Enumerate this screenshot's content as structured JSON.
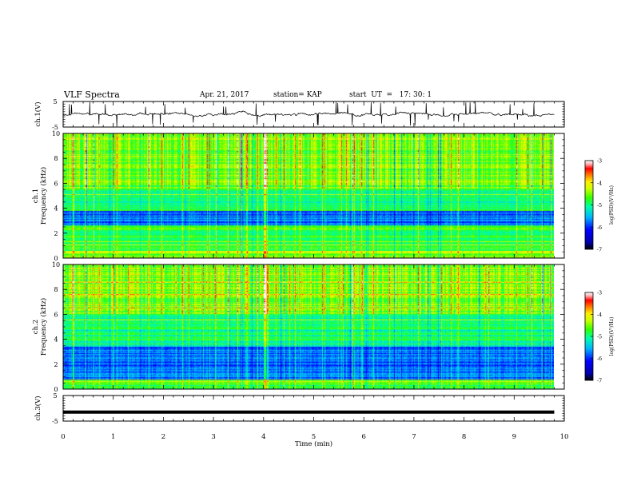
{
  "header": {
    "title": "VLF Spectra",
    "date": "Apr. 21, 2017",
    "station": "station= KAP",
    "start": "start  UT  =   17: 30: 1"
  },
  "chart_data": [
    {
      "type": "line",
      "panel": "ch1-waveform",
      "ylabel": "ch.1(V)",
      "ylim": [
        -5,
        5
      ],
      "yticks": [
        "5",
        "-5"
      ],
      "xlim": [
        0,
        10
      ],
      "x_extent": [
        0,
        9.8
      ],
      "y_typical_range": [
        -1.5,
        1.5
      ],
      "y_spike_range": [
        -5,
        5
      ]
    },
    {
      "type": "heatmap",
      "panel": "ch1-spectrogram",
      "ylabel": "ch.1\nFrequency (kHz)",
      "ylabel_lines": [
        "ch.1",
        "Frequency (kHz)"
      ],
      "ylim": [
        0,
        10
      ],
      "yticks": [
        "0",
        "2",
        "4",
        "6",
        "8",
        "10"
      ],
      "xlim": [
        0,
        10
      ],
      "x_extent": [
        0,
        9.8
      ],
      "colorbar": {
        "label": "log(PSD)(V²/Hz)",
        "range": [
          -7,
          -3
        ],
        "ticks": [
          "-3",
          "-4",
          "-5",
          "-6",
          "-7"
        ],
        "colors": [
          "#000099",
          "#0000ff",
          "#00aaff",
          "#00ffaa",
          "#33ff00",
          "#ccff00",
          "#ffee00",
          "#ff8800",
          "#ff0000",
          "#ffaaaa",
          "#ffffff"
        ]
      },
      "features": [
        {
          "band_khz": [
            0,
            0.6
          ],
          "level": "high"
        },
        {
          "band_khz": [
            0.6,
            2.6
          ],
          "level": "medium-high"
        },
        {
          "band_khz": [
            2.6,
            3.8
          ],
          "level": "low"
        },
        {
          "band_khz": [
            3.8,
            5.6
          ],
          "level": "medium"
        },
        {
          "band_khz": [
            5.6,
            10
          ],
          "level": "high with vertical impulses"
        }
      ]
    },
    {
      "type": "heatmap",
      "panel": "ch2-spectrogram",
      "ylabel": "ch.2\nFrequency (kHz)",
      "ylabel_lines": [
        "ch.2",
        "Frequency (kHz)"
      ],
      "ylim": [
        0,
        10
      ],
      "yticks": [
        "0",
        "2",
        "4",
        "6",
        "8",
        "10"
      ],
      "xlim": [
        0,
        10
      ],
      "x_extent": [
        0,
        9.8
      ],
      "colorbar": {
        "label": "log(PSD)(V²/Hz)",
        "range": [
          -7,
          -3
        ],
        "ticks": [
          "-3",
          "-4",
          "-5",
          "-6",
          "-7"
        ]
      },
      "features": [
        {
          "band_khz": [
            0,
            0.8
          ],
          "level": "medium-high"
        },
        {
          "band_khz": [
            0.8,
            3.4
          ],
          "level": "low"
        },
        {
          "band_khz": [
            3.4,
            6
          ],
          "level": "medium"
        },
        {
          "band_khz": [
            6,
            10
          ],
          "level": "high with vertical impulses"
        }
      ]
    },
    {
      "type": "line",
      "panel": "ch3-waveform",
      "ylabel": "ch.3(V)",
      "ylim": [
        -5,
        5
      ],
      "yticks": [
        "5",
        "-5"
      ],
      "xlim": [
        0,
        10
      ],
      "x": [
        0,
        9.8
      ],
      "values": [
        -1.5,
        -1.5
      ]
    }
  ],
  "x_axis": {
    "label": "Time  (min)",
    "ticks": [
      "0",
      "1",
      "2",
      "3",
      "4",
      "5",
      "6",
      "7",
      "8",
      "9",
      "10"
    ]
  }
}
